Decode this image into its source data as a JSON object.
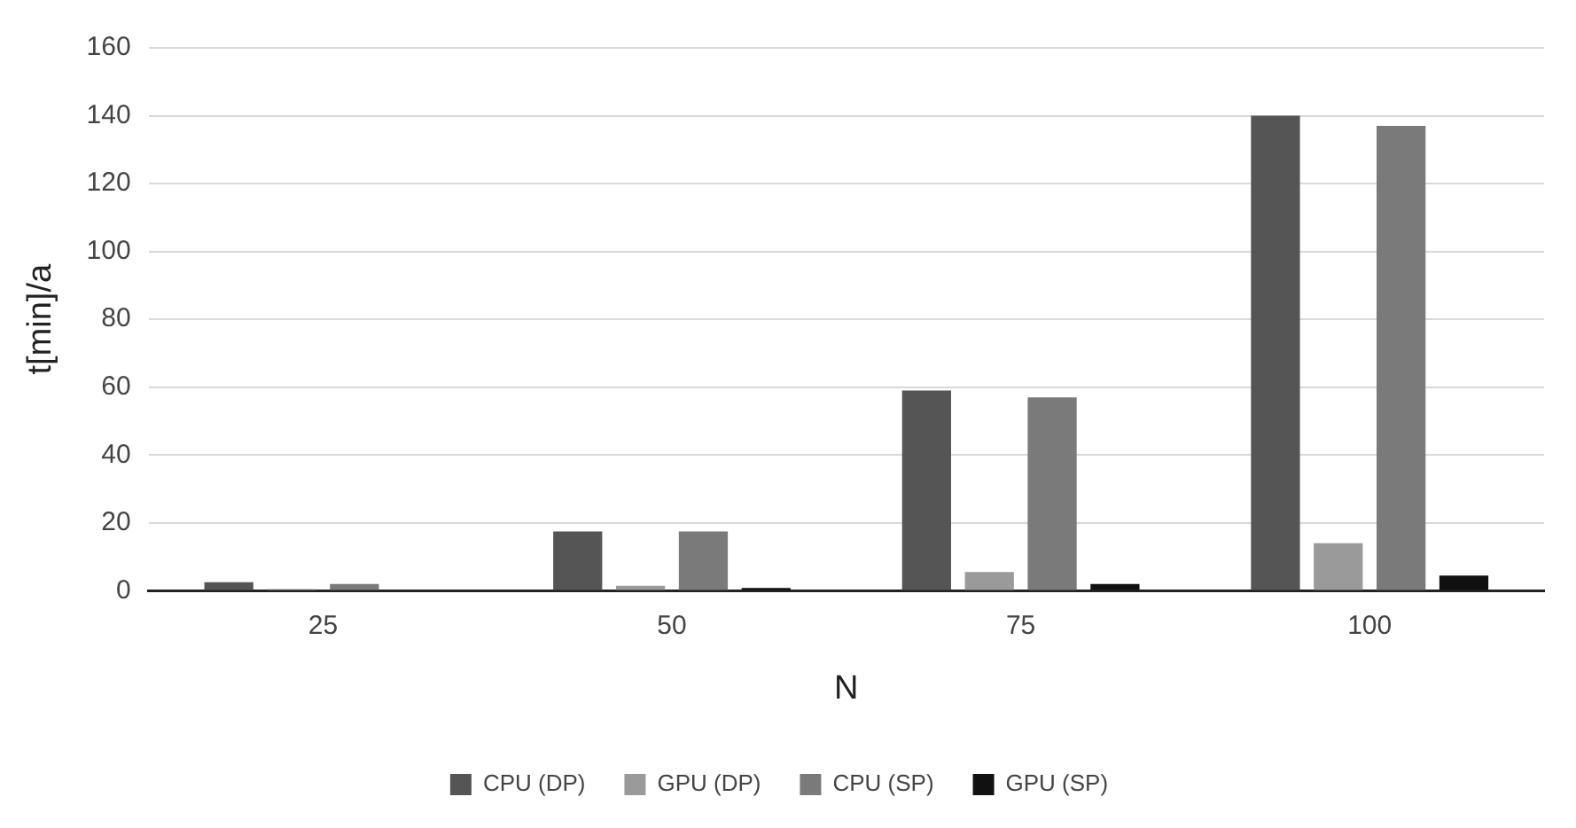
{
  "chart_data": {
    "type": "bar",
    "xlabel": "N",
    "ylabel": "t[min]/a",
    "categories": [
      "25",
      "50",
      "75",
      "100"
    ],
    "series": [
      {
        "name": "CPU (DP)",
        "color": "#555555",
        "values": [
          2.5,
          17.5,
          59,
          140
        ]
      },
      {
        "name": "GPU (DP)",
        "color": "#9a9a9a",
        "values": [
          0.5,
          1.5,
          5.5,
          14
        ]
      },
      {
        "name": "CPU (SP)",
        "color": "#7a7a7a",
        "values": [
          2,
          17.5,
          57,
          137
        ]
      },
      {
        "name": "GPU (SP)",
        "color": "#111111",
        "values": [
          null,
          0.8,
          2,
          4.5
        ]
      }
    ],
    "ylim": [
      0,
      160
    ],
    "yticks": [
      0,
      20,
      40,
      60,
      80,
      100,
      120,
      140,
      160
    ],
    "grid": "y",
    "legend": "bottom"
  }
}
